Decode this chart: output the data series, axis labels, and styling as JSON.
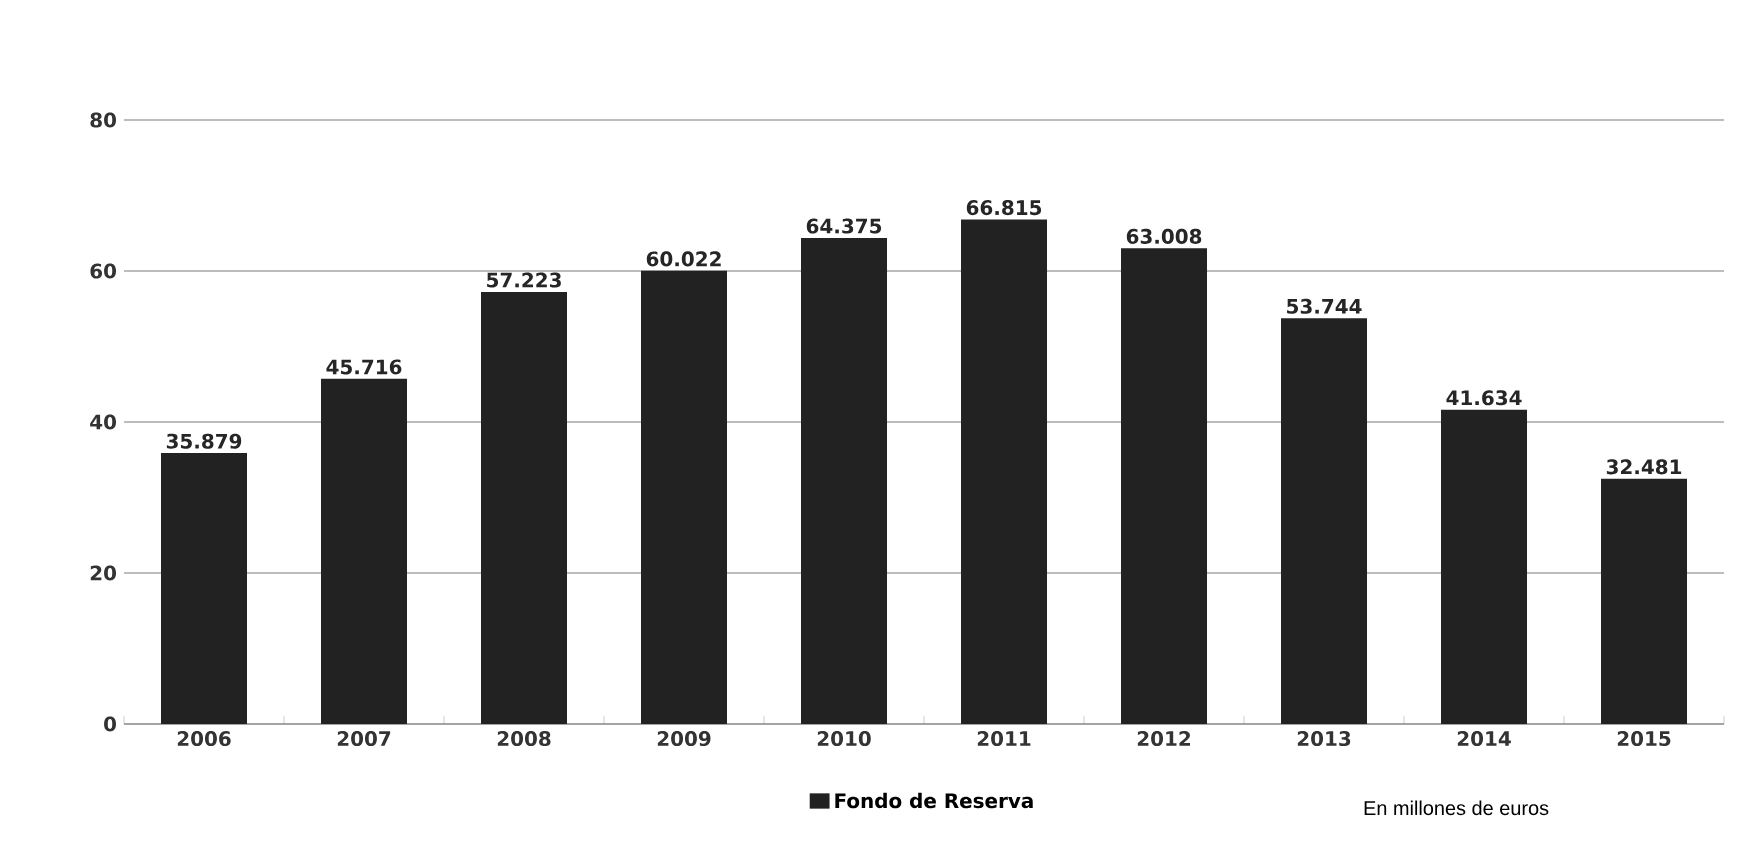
{
  "chart_data": {
    "type": "bar",
    "categories": [
      "2006",
      "2007",
      "2008",
      "2009",
      "2010",
      "2011",
      "2012",
      "2013",
      "2014",
      "2015"
    ],
    "series": [
      {
        "name": "Fondo de Reserva",
        "color": "#222222",
        "values": [
          35.879,
          45.716,
          57.223,
          60.022,
          64.375,
          66.815,
          63.008,
          53.744,
          41.634,
          32.481
        ]
      }
    ],
    "ylim": [
      0,
      80
    ],
    "yticks": [
      0,
      20,
      40,
      60,
      80
    ],
    "grid": "y",
    "legend": "bottom",
    "data_labels": true,
    "annotations": [
      "En millones de euros"
    ]
  }
}
